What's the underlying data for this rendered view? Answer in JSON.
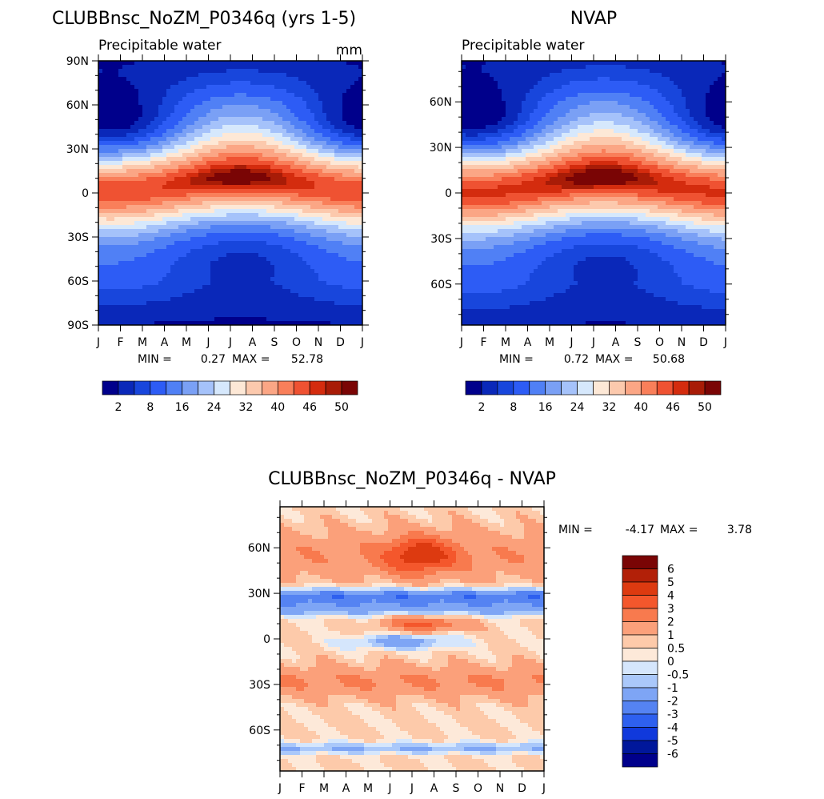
{
  "chart_data": [
    {
      "type": "heatmap",
      "title": "CLUBBnsc_NoZM_P0346q (yrs 1-5)",
      "subtitle": "Precipitable water",
      "units": "mm",
      "x_ticks": [
        "J",
        "F",
        "M",
        "A",
        "M",
        "J",
        "J",
        "A",
        "S",
        "O",
        "N",
        "D",
        "J"
      ],
      "y_ticks": [
        "90N",
        "60N",
        "30N",
        "0",
        "30S",
        "60S",
        "90S"
      ],
      "stats": {
        "min_label": "MIN =",
        "min": "0.27",
        "max_label": "MAX =",
        "max": "52.78"
      },
      "colorbar": {
        "orientation": "horizontal",
        "labels": [
          "2",
          "8",
          "16",
          "24",
          "32",
          "40",
          "46",
          "50"
        ]
      },
      "colors": [
        "#00008b",
        "#0a28b9",
        "#1846dc",
        "#2d5cf5",
        "#5080f5",
        "#7aa0f5",
        "#a5c2fa",
        "#d6e8fc",
        "#fde8d6",
        "#fcc9ad",
        "#fba685",
        "#f97f5a",
        "#ef5232",
        "#d42c0e",
        "#a81c07",
        "#7a0505"
      ]
    },
    {
      "type": "heatmap",
      "title": "NVAP",
      "subtitle": "Precipitable water",
      "x_ticks": [
        "J",
        "F",
        "M",
        "A",
        "M",
        "J",
        "J",
        "A",
        "S",
        "O",
        "N",
        "D",
        "J"
      ],
      "y_ticks": [
        "60N",
        "30N",
        "0",
        "30S",
        "60S"
      ],
      "stats": {
        "min_label": "MIN =",
        "min": "0.72",
        "max_label": "MAX =",
        "max": "50.68"
      },
      "colorbar": {
        "orientation": "horizontal",
        "labels": [
          "2",
          "8",
          "16",
          "24",
          "32",
          "40",
          "46",
          "50"
        ]
      },
      "colors": [
        "#00008b",
        "#0a28b9",
        "#1846dc",
        "#2d5cf5",
        "#5080f5",
        "#7aa0f5",
        "#a5c2fa",
        "#d6e8fc",
        "#fde8d6",
        "#fcc9ad",
        "#fba685",
        "#f97f5a",
        "#ef5232",
        "#d42c0e",
        "#a81c07",
        "#7a0505"
      ]
    },
    {
      "type": "heatmap",
      "title": "CLUBBnsc_NoZM_P0346q - NVAP",
      "x_ticks": [
        "J",
        "F",
        "M",
        "A",
        "M",
        "J",
        "J",
        "A",
        "S",
        "O",
        "N",
        "D",
        "J"
      ],
      "y_ticks": [
        "60N",
        "30N",
        "0",
        "30S",
        "60S"
      ],
      "stats": {
        "min_label": "MIN =",
        "min": "-4.17",
        "max_label": "MAX =",
        "max": "3.78"
      },
      "colorbar": {
        "orientation": "vertical",
        "labels": [
          "6",
          "5",
          "4",
          "3",
          "2",
          "1",
          "0.5",
          "0",
          "-0.5",
          "-1",
          "-2",
          "-3",
          "-4",
          "-5",
          "-6"
        ]
      },
      "colors": [
        "#7a0505",
        "#b22008",
        "#dd3a10",
        "#f4572c",
        "#f87a4e",
        "#fba07a",
        "#fdcaaa",
        "#fde9d9",
        "#d5e6fc",
        "#aac8fa",
        "#7ea5f5",
        "#5583f2",
        "#2e60ef",
        "#1039dc",
        "#00179b",
        "#00008b"
      ]
    }
  ]
}
